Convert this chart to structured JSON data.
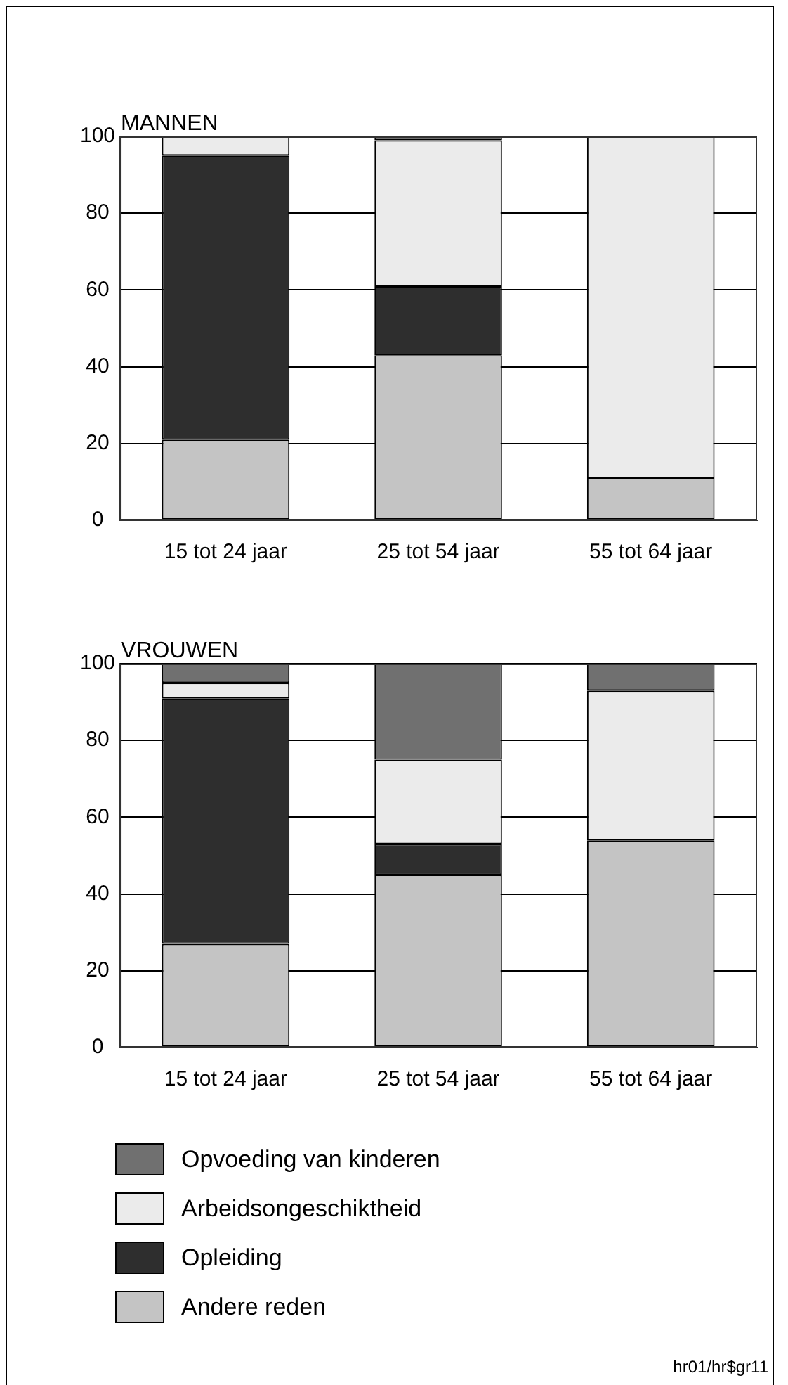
{
  "chart_data": [
    {
      "type": "bar",
      "title": "MANNEN",
      "categories": [
        "15 tot 24 jaar",
        "25 tot 54 jaar",
        "55 tot 64 jaar"
      ],
      "stacked": true,
      "series": [
        {
          "color": "#c4c4c4",
          "values": [
            21,
            43,
            11
          ]
        },
        {
          "color": "#2e2e2e",
          "values": [
            74,
            18,
            0
          ]
        },
        {
          "color": "#ebebeb",
          "values": [
            5,
            38,
            89
          ]
        },
        {
          "color": "#707070",
          "values": [
            0,
            1,
            0
          ]
        }
      ],
      "ylim": [
        0,
        100
      ],
      "yticks": [
        0,
        20,
        40,
        60,
        80,
        100
      ],
      "grid": "y",
      "legend": false
    },
    {
      "type": "bar",
      "title": "VROUWEN",
      "categories": [
        "15 tot 24 jaar",
        "25 tot 54 jaar",
        "55 tot 64 jaar"
      ],
      "stacked": true,
      "series": [
        {
          "name": "Andere reden",
          "color": "#c4c4c4",
          "values": [
            27,
            45,
            54
          ]
        },
        {
          "name": "Opleiding",
          "color": "#2e2e2e",
          "values": [
            64,
            8,
            0
          ]
        },
        {
          "name": "Arbeidsongeschiktheid",
          "color": "#ebebeb",
          "values": [
            4,
            22,
            39
          ]
        },
        {
          "name": "Opvoeding van kinderen",
          "color": "#707070",
          "values": [
            5,
            25,
            7
          ]
        }
      ],
      "ylim": [
        0,
        100
      ],
      "yticks": [
        0,
        20,
        40,
        60,
        80,
        100
      ],
      "grid": "y",
      "legend": "bottom",
      "annotations": [
        "hr01/hr$gr11"
      ]
    }
  ]
}
